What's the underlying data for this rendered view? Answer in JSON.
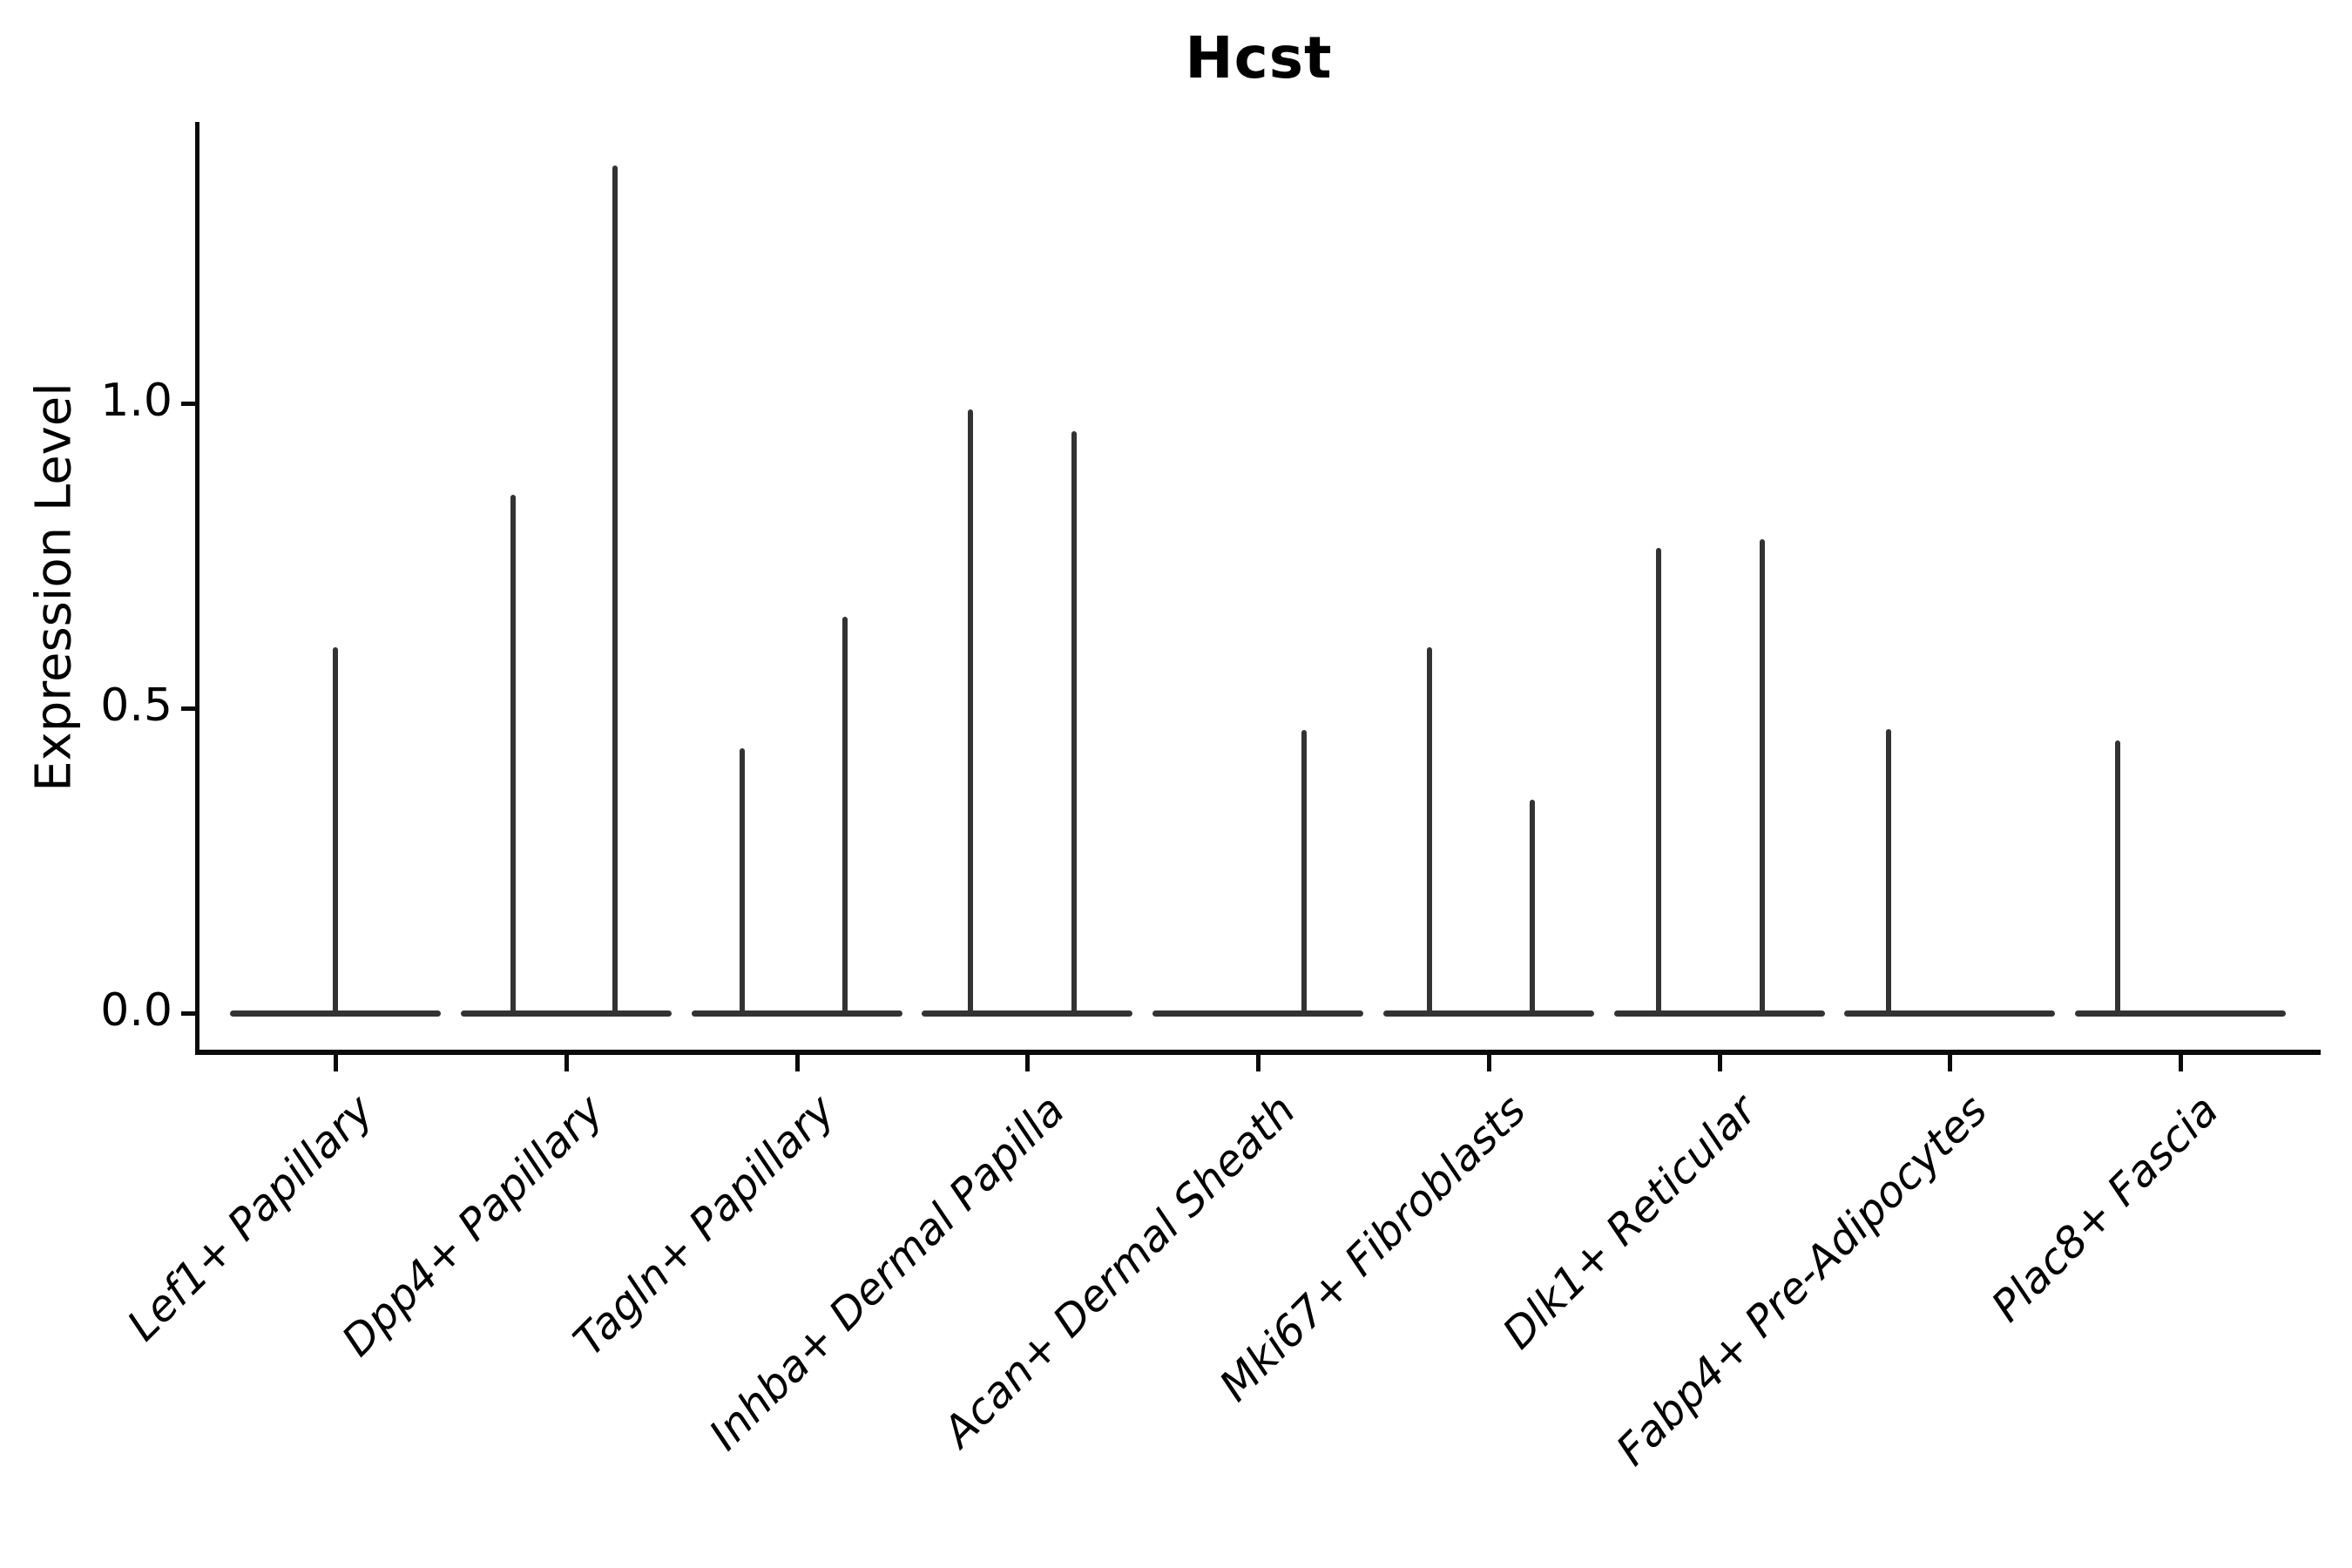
{
  "chart_data": {
    "type": "violin",
    "title": "Hcst",
    "ylabel": "Expression Level",
    "xlabel": "",
    "ylim": [
      -0.07,
      1.47
    ],
    "grid": false,
    "legend": "none",
    "yticks": [
      {
        "value": 0.0,
        "label": "0.0"
      },
      {
        "value": 0.5,
        "label": "0.5"
      },
      {
        "value": 1.0,
        "label": "1.0"
      }
    ],
    "tick_label_style": "italic, rotated 45deg",
    "violin_color": "#333333",
    "description": "Violin plot of gene Hcst expression per fibroblast cell type; each violin is collapsed flat at 0 with a thin tail rising to the maximum expression value. Some categories contain two side-by-side violins.",
    "categories": [
      {
        "label": "Lef1+ Papillary",
        "violins": [
          {
            "dx": 0,
            "max": 0.6
          }
        ]
      },
      {
        "label": "Dpp4+ Papillary",
        "violins": [
          {
            "dx": -61,
            "max": 0.85
          },
          {
            "dx": 56,
            "max": 1.39
          }
        ]
      },
      {
        "label": "Tagln+ Papillary",
        "violins": [
          {
            "dx": -63,
            "max": 0.435
          },
          {
            "dx": 55,
            "max": 0.65
          }
        ]
      },
      {
        "label": "Inhba+ Dermal Papilla",
        "violins": [
          {
            "dx": -65,
            "max": 0.99
          },
          {
            "dx": 54,
            "max": 0.955
          }
        ]
      },
      {
        "label": "Acan+ Dermal Sheath",
        "violins": [
          {
            "dx": 53,
            "max": 0.465
          }
        ]
      },
      {
        "label": "Mki67+ Fibroblasts",
        "violins": [
          {
            "dx": -68,
            "max": 0.6
          },
          {
            "dx": 50,
            "max": 0.35
          }
        ]
      },
      {
        "label": "Dlk1+ Reticular",
        "violins": [
          {
            "dx": -70,
            "max": 0.763
          },
          {
            "dx": 49,
            "max": 0.777
          }
        ]
      },
      {
        "label": "Fabp4+ Pre-Adipocytes",
        "violins": [
          {
            "dx": -70,
            "max": 0.466
          }
        ]
      },
      {
        "label": "Plac8+ Fascia",
        "violins": [
          {
            "dx": -72,
            "max": 0.447
          }
        ]
      }
    ]
  }
}
